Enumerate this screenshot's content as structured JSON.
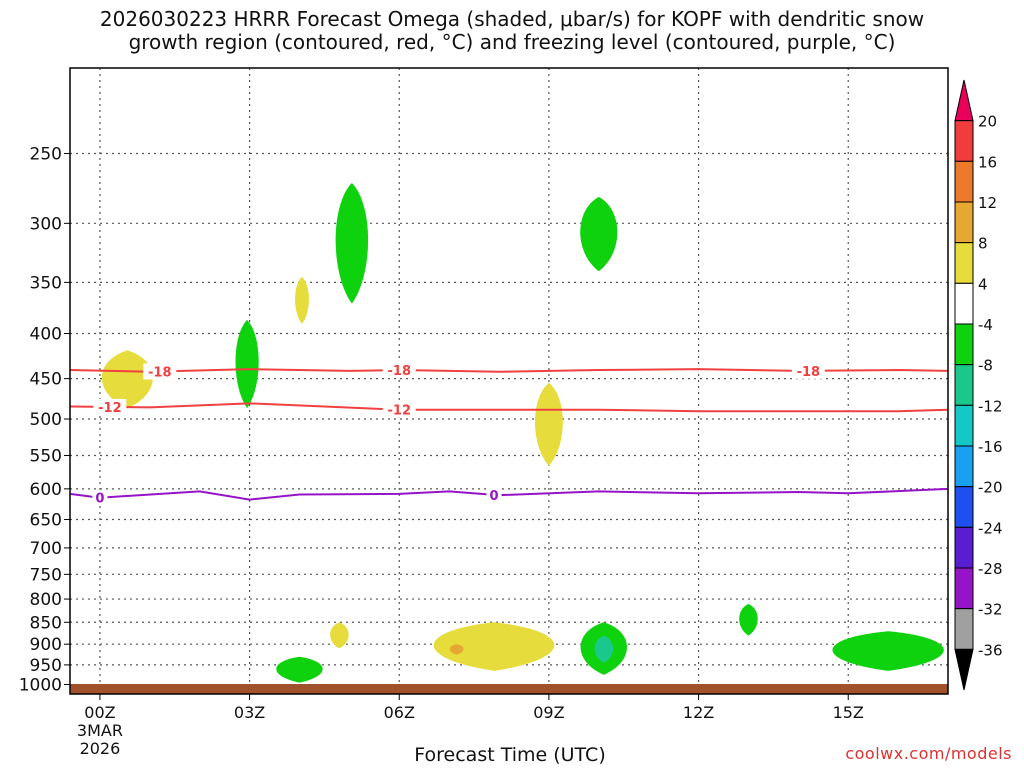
{
  "title": "2026030223 HRRR Forecast Omega (shaded, μbar/s) for KOPF with dendritic snow\ngrowth region (contoured, red, °C) and freezing level (contoured, purple, °C)",
  "credit": "coolwx.com/models",
  "chart_data": {
    "type": "time-height cross section",
    "title": "2026030223 HRRR Forecast Omega (shaded, μbar/s) for KOPF with dendritic snow growth region (contoured, red, °C) and freezing level (contoured, purple, °C)",
    "xlabel": "Forecast Time (UTC)",
    "ylabel": "",
    "x_ticks": [
      {
        "hour": 0,
        "label": "00Z",
        "sublabel": "3MAR",
        "sublabel2": "2026"
      },
      {
        "hour": 3,
        "label": "03Z"
      },
      {
        "hour": 6,
        "label": "06Z"
      },
      {
        "hour": 9,
        "label": "09Z"
      },
      {
        "hour": 12,
        "label": "12Z"
      },
      {
        "hour": 15,
        "label": "15Z"
      }
    ],
    "x_range_hours": [
      -0.6,
      17.0
    ],
    "y_ticks": [
      250,
      300,
      350,
      400,
      450,
      500,
      550,
      600,
      650,
      700,
      750,
      800,
      850,
      900,
      950,
      1000
    ],
    "y_range_hpa": [
      200,
      1025
    ],
    "colorbar": {
      "unit": "μbar/s",
      "labels": [
        20,
        16,
        12,
        8,
        4,
        -4,
        -8,
        -12,
        -16,
        -20,
        -24,
        -28,
        -32,
        -36
      ],
      "colors": [
        "#e8005a",
        "#f03c3c",
        "#ec7a2a",
        "#e6a830",
        "#e6dc3c",
        "#ffffff",
        "#0ed20e",
        "#1ac88c",
        "#14c8c8",
        "#1aa0f0",
        "#1e50f0",
        "#5a1ed2",
        "#9614c8",
        "#a0a0a0",
        "#000000"
      ]
    },
    "contours": [
      {
        "name": "dendritic-upper",
        "label": "-18",
        "color": "#f04040",
        "hours": [
          -0.6,
          1,
          3,
          5,
          6,
          8,
          10,
          12,
          14,
          16,
          17
        ],
        "hpa": [
          440,
          442,
          439,
          441,
          440,
          442,
          440,
          439,
          441,
          440,
          441
        ],
        "label_hours": [
          1.2,
          6.0,
          14.2
        ]
      },
      {
        "name": "dendritic-lower",
        "label": "-12",
        "color": "#f04040",
        "hours": [
          -0.6,
          1,
          3,
          4.5,
          6,
          8,
          10,
          12,
          14,
          16,
          17
        ],
        "hpa": [
          484,
          485,
          480,
          484,
          488,
          488,
          488,
          490,
          490,
          490,
          488
        ],
        "label_hours": [
          0.2,
          6.0
        ]
      },
      {
        "name": "freezing-level",
        "label": "0",
        "color": "#9614c8",
        "hours": [
          -0.6,
          0,
          2,
          3,
          4,
          6,
          7,
          8,
          10,
          12,
          14,
          15,
          17
        ],
        "hpa": [
          608,
          614,
          604,
          617,
          609,
          608,
          604,
          610,
          604,
          607,
          605,
          607,
          600
        ],
        "label_hours": [
          0.0,
          7.9
        ]
      }
    ],
    "omega_regions": [
      {
        "name": "omega-yellow-450",
        "value": 4,
        "color": "#e6dc3c",
        "hours": [
          0,
          1.1
        ],
        "hpa": [
          418,
          486
        ]
      },
      {
        "name": "omega-green-425",
        "value": -4,
        "color": "#0ed20e",
        "hours": [
          2.7,
          3.2
        ],
        "hpa": [
          386,
          486
        ]
      },
      {
        "name": "omega-yellow-365",
        "value": 4,
        "color": "#e6dc3c",
        "hours": [
          3.9,
          4.2
        ],
        "hpa": [
          345,
          390
        ]
      },
      {
        "name": "omega-green-320",
        "value": -4,
        "color": "#0ed20e",
        "hours": [
          4.7,
          5.4
        ],
        "hpa": [
          270,
          370
        ]
      },
      {
        "name": "omega-green-310",
        "value": -4,
        "color": "#0ed20e",
        "hours": [
          9.6,
          10.4
        ],
        "hpa": [
          280,
          340
        ]
      },
      {
        "name": "omega-yellow-510",
        "value": 4,
        "color": "#e6dc3c",
        "hours": [
          8.7,
          9.3
        ],
        "hpa": [
          455,
          565
        ]
      },
      {
        "name": "omega-green-960",
        "value": -4,
        "color": "#0ed20e",
        "hours": [
          3.5,
          4.5
        ],
        "hpa": [
          930,
          995
        ]
      },
      {
        "name": "omega-yellow-880",
        "value": 4,
        "color": "#e6dc3c",
        "hours": [
          4.6,
          5.0
        ],
        "hpa": [
          850,
          910
        ]
      },
      {
        "name": "omega-yellow-900",
        "value": 4,
        "color": "#e6dc3c",
        "hours": [
          6.6,
          9.2
        ],
        "hpa": [
          850,
          965
        ]
      },
      {
        "name": "omega-orange-910",
        "value": 8,
        "color": "#e6a830",
        "hours": [
          7.0,
          7.3
        ],
        "hpa": [
          900,
          925
        ]
      },
      {
        "name": "omega-green-900",
        "value": -4,
        "color": "#0ed20e",
        "hours": [
          9.6,
          10.6
        ],
        "hpa": [
          850,
          975
        ]
      },
      {
        "name": "omega-teal-905",
        "value": -8,
        "color": "#1ac88c",
        "hours": [
          9.9,
          10.3
        ],
        "hpa": [
          880,
          945
        ]
      },
      {
        "name": "omega-green-850",
        "value": -4,
        "color": "#0ed20e",
        "hours": [
          12.8,
          13.2
        ],
        "hpa": [
          810,
          880
        ]
      },
      {
        "name": "omega-green-930",
        "value": -4,
        "color": "#0ed20e",
        "hours": [
          14.6,
          17.0
        ],
        "hpa": [
          870,
          965
        ]
      }
    ],
    "surface_band_color": "#a0522d"
  }
}
